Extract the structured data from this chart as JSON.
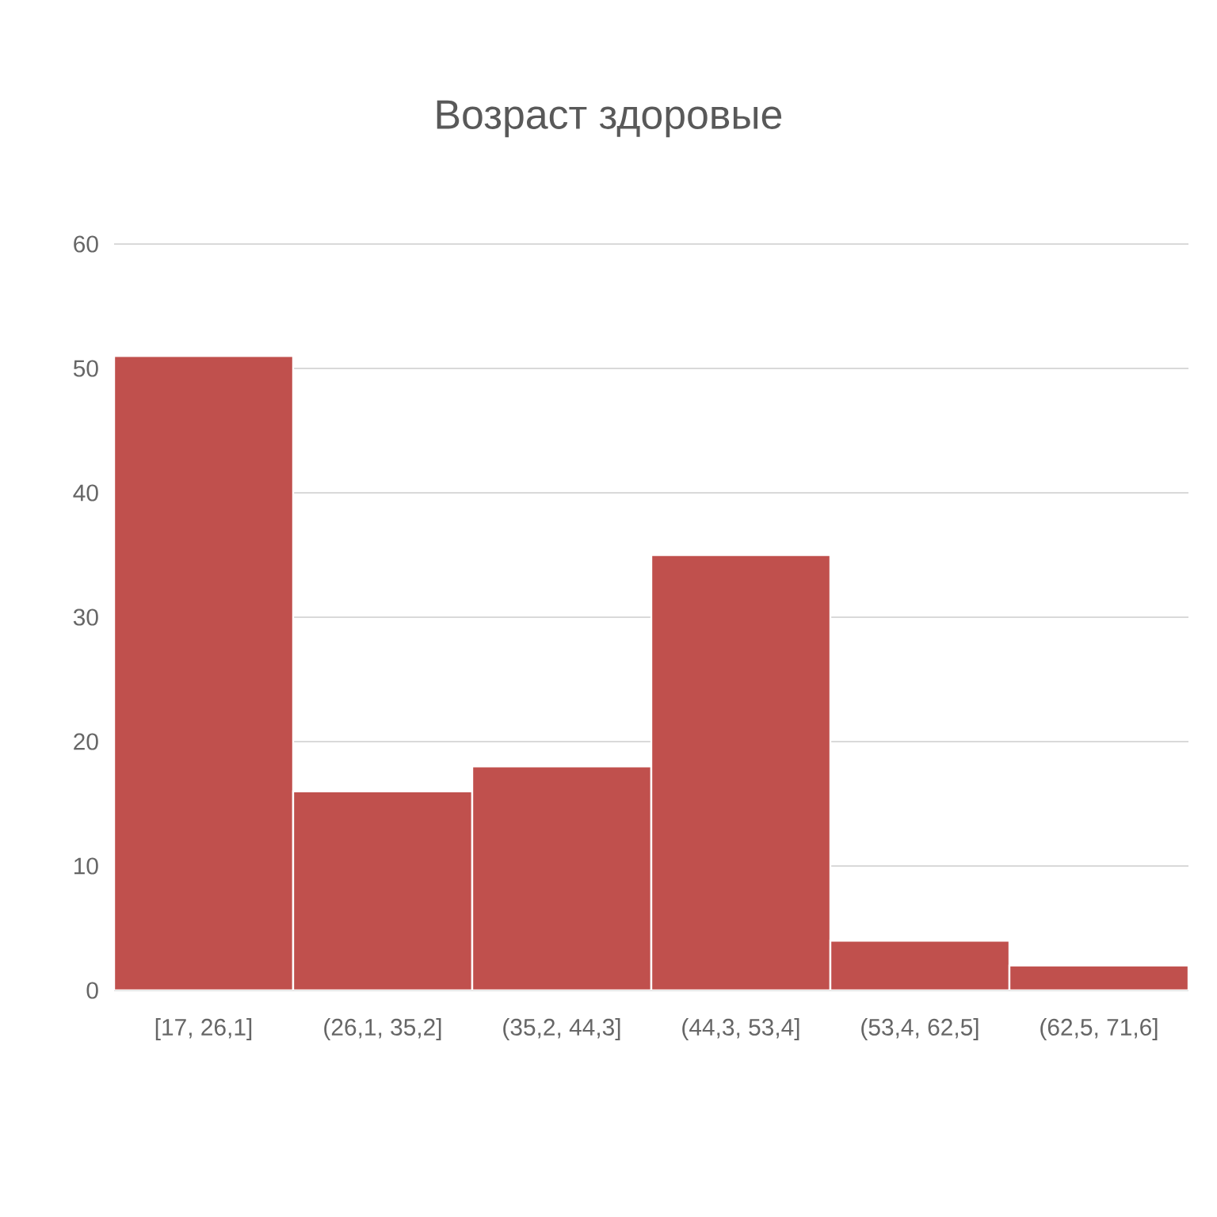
{
  "chart_data": {
    "type": "bar",
    "title": "Возраст здоровые",
    "categories": [
      "[17, 26,1]",
      "(26,1, 35,2]",
      "(35,2, 44,3]",
      "(44,3, 53,4]",
      "(53,4, 62,5]",
      "(62,5, 71,6]"
    ],
    "values": [
      51,
      16,
      18,
      35,
      4,
      2
    ],
    "color": "#c0504d",
    "ylim": [
      0,
      60
    ],
    "yticks": [
      0,
      10,
      20,
      30,
      40,
      50,
      60
    ],
    "grid": "y"
  }
}
